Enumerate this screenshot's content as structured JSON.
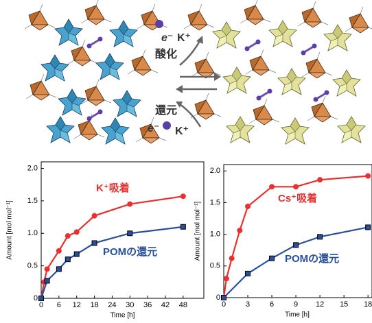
{
  "scheme": {
    "electron_top": "e⁻",
    "cation_top": "K⁺",
    "oxidation": "酸化",
    "reduction": "還元",
    "electron_bottom": "e⁻",
    "cation_bottom": "K⁺"
  },
  "chart_data": [
    {
      "type": "line",
      "xlabel": "Time [h]",
      "ylabel": "Amount [mol mol⁻¹]",
      "xlim": [
        0,
        55
      ],
      "ylim": [
        0,
        2.1
      ],
      "xticks": [
        0,
        6,
        12,
        18,
        24,
        30,
        36,
        42,
        48
      ],
      "yticks": [
        0,
        0.5,
        {
          "value": 1,
          "label": "1.0"
        },
        1.5,
        {
          "value": 2,
          "label": "2.0"
        }
      ],
      "series": [
        {
          "name": "K⁺吸着",
          "color": "#e8312f",
          "marker": "circle",
          "x": [
            0,
            1,
            2,
            6,
            9,
            12,
            18,
            30,
            48
          ],
          "values": [
            0,
            0.25,
            0.45,
            0.73,
            0.96,
            1.02,
            1.27,
            1.45,
            1.57
          ]
        },
        {
          "name": "POMの還元",
          "color": "#2a4f9a",
          "marker": "square",
          "x": [
            0,
            2,
            6,
            9,
            12,
            18,
            30,
            48
          ],
          "values": [
            0,
            0.27,
            0.45,
            0.6,
            0.68,
            0.85,
            1.0,
            1.1
          ]
        }
      ]
    },
    {
      "type": "line",
      "xlabel": "Time [h]",
      "ylabel": "Amount [mol mol⁻¹]",
      "xlim": [
        0,
        18.5
      ],
      "ylim": [
        0,
        2.1
      ],
      "xticks": [
        0,
        3,
        6,
        9,
        12,
        15,
        18
      ],
      "yticks": [
        0,
        0.5,
        {
          "value": 1,
          "label": "1.0"
        },
        1.5,
        {
          "value": 2,
          "label": "2.0"
        }
      ],
      "series": [
        {
          "name": "Cs⁺吸着",
          "color": "#e8312f",
          "marker": "circle",
          "x": [
            0,
            0.33,
            1,
            2,
            3,
            6,
            9,
            12,
            18
          ],
          "values": [
            0,
            0.3,
            0.62,
            1.06,
            1.44,
            1.75,
            1.75,
            1.86,
            1.92
          ]
        },
        {
          "name": "POMの還元",
          "color": "#2a4f9a",
          "marker": "square",
          "x": [
            0,
            3,
            6,
            9,
            12,
            18
          ],
          "values": [
            0,
            0.38,
            0.62,
            0.83,
            0.96,
            1.11
          ]
        }
      ]
    }
  ]
}
